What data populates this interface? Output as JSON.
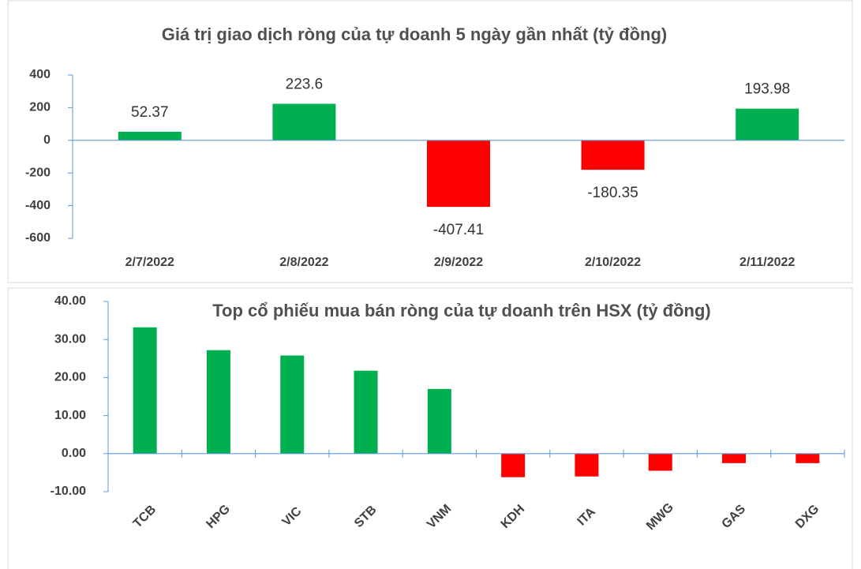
{
  "chart_data": [
    {
      "type": "bar",
      "title": "Giá trị giao dịch ròng của tự doanh 5 ngày gần nhất (tỷ đồng)",
      "categories": [
        "2/7/2022",
        "2/8/2022",
        "2/9/2022",
        "2/10/2022",
        "2/11/2022"
      ],
      "values": [
        52.37,
        223.6,
        -407.41,
        -180.35,
        193.98
      ],
      "colors": [
        "#00b050",
        "#00b050",
        "#ff0000",
        "#ff0000",
        "#00b050"
      ],
      "ylim": [
        -600,
        400
      ],
      "yticks": [
        -600,
        -400,
        -200,
        0,
        200,
        400
      ],
      "grid": false
    },
    {
      "type": "bar",
      "title": "Top cổ phiếu mua bán ròng của tự doanh trên HSX (tỷ đồng)",
      "categories": [
        "TCB",
        "HPG",
        "VIC",
        "STB",
        "VNM",
        "KDH",
        "ITA",
        "MWG",
        "GAS",
        "DXG"
      ],
      "values": [
        33.2,
        27.2,
        25.8,
        21.8,
        17.0,
        -6.2,
        -6.0,
        -4.5,
        -2.5,
        -2.5
      ],
      "colors": [
        "#00b050",
        "#00b050",
        "#00b050",
        "#00b050",
        "#00b050",
        "#ff0000",
        "#ff0000",
        "#ff0000",
        "#ff0000",
        "#ff0000"
      ],
      "ylim": [
        -10,
        40
      ],
      "yticks": [
        {
          "value": -10,
          "label": "-10.00"
        },
        {
          "value": 0,
          "label": "0.00"
        },
        {
          "value": 10,
          "label": "10.00"
        },
        {
          "value": 20,
          "label": "20.00"
        },
        {
          "value": 30,
          "label": "30.00"
        },
        {
          "value": 40,
          "label": "40.00"
        }
      ],
      "grid": false
    }
  ]
}
